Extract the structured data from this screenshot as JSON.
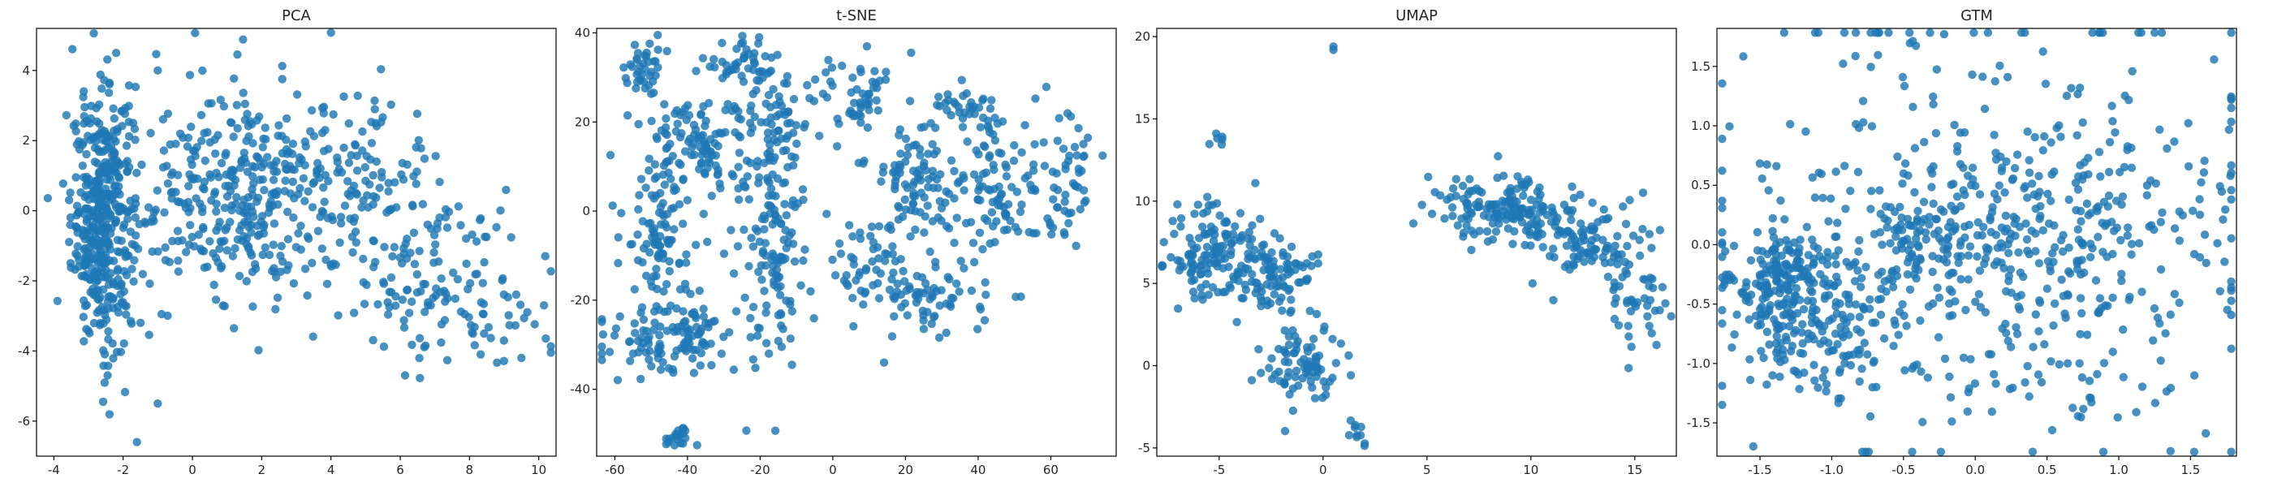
{
  "chart_data": [
    {
      "type": "scatter",
      "title": "PCA",
      "xlabel": "",
      "ylabel": "",
      "xlim": [
        -4.5,
        10.5
      ],
      "ylim": [
        -7.0,
        5.2
      ],
      "xticks": [
        -4,
        -2,
        0,
        2,
        4,
        6,
        8,
        10
      ],
      "yticks": [
        -6,
        -4,
        -2,
        0,
        2,
        4
      ],
      "color": "#1f77b4",
      "grid": false,
      "clusters": [
        {
          "center": [
            -2.6,
            -0.3
          ],
          "spread": [
            0.45,
            1.8
          ],
          "n": 420
        },
        {
          "center": [
            1.0,
            0.6
          ],
          "spread": [
            1.6,
            1.6
          ],
          "n": 300
        },
        {
          "center": [
            4.0,
            0.5
          ],
          "spread": [
            1.6,
            1.5
          ],
          "n": 170
        },
        {
          "center": [
            6.8,
            -1.8
          ],
          "spread": [
            1.5,
            1.3
          ],
          "n": 110
        },
        {
          "center": [
            8.5,
            -2.8
          ],
          "spread": [
            1.0,
            1.0
          ],
          "n": 40
        }
      ],
      "points": [
        [
          -1.6,
          -6.6
        ],
        [
          -1.0,
          -5.5
        ],
        [
          9.5,
          -4.2
        ],
        [
          -2.2,
          4.5
        ],
        [
          -1.0,
          4.0
        ]
      ]
    },
    {
      "type": "scatter",
      "title": "t-SNE",
      "xlabel": "",
      "ylabel": "",
      "xlim": [
        -65,
        78
      ],
      "ylim": [
        -55,
        41
      ],
      "xticks": [
        -60,
        -40,
        -20,
        0,
        20,
        40,
        60
      ],
      "yticks": [
        -40,
        -20,
        0,
        20,
        40
      ],
      "color": "#1f77b4",
      "grid": false,
      "clusters": [
        {
          "center": [
            -52,
            32
          ],
          "spread": [
            2.5,
            3.5
          ],
          "n": 40
        },
        {
          "center": [
            -25,
            34
          ],
          "spread": [
            5,
            2.5
          ],
          "n": 40
        },
        {
          "center": [
            -38,
            15
          ],
          "spread": [
            7,
            6
          ],
          "n": 110
        },
        {
          "center": [
            -48,
            -5
          ],
          "spread": [
            5,
            8
          ],
          "n": 90
        },
        {
          "center": [
            -45,
            -28
          ],
          "spread": [
            9,
            4
          ],
          "n": 120
        },
        {
          "center": [
            -18,
            -5
          ],
          "spread": [
            5,
            14
          ],
          "n": 150
        },
        {
          "center": [
            -15,
            20
          ],
          "spread": [
            6,
            6
          ],
          "n": 60
        },
        {
          "center": [
            8,
            25
          ],
          "spread": [
            5,
            5
          ],
          "n": 50
        },
        {
          "center": [
            22,
            8
          ],
          "spread": [
            6,
            6
          ],
          "n": 90
        },
        {
          "center": [
            10,
            -12
          ],
          "spread": [
            6,
            6
          ],
          "n": 60
        },
        {
          "center": [
            30,
            -20
          ],
          "spread": [
            8,
            4
          ],
          "n": 60
        },
        {
          "center": [
            45,
            5
          ],
          "spread": [
            7,
            9
          ],
          "n": 100
        },
        {
          "center": [
            65,
            5
          ],
          "spread": [
            4,
            8
          ],
          "n": 50
        },
        {
          "center": [
            38,
            23
          ],
          "spread": [
            6,
            2.5
          ],
          "n": 30
        },
        {
          "center": [
            -42,
            -51
          ],
          "spread": [
            2,
            1.2
          ],
          "n": 20
        }
      ],
      "points": []
    },
    {
      "type": "scatter",
      "title": "UMAP",
      "xlabel": "",
      "ylabel": "",
      "xlim": [
        -8,
        17
      ],
      "ylim": [
        -5.5,
        20.5
      ],
      "xticks": [
        -5,
        0,
        5,
        10,
        15
      ],
      "yticks": [
        -5,
        0,
        5,
        10,
        15,
        20
      ],
      "color": "#1f77b4",
      "grid": false,
      "clusters": [
        {
          "center": [
            -5.5,
            7.0
          ],
          "spread": [
            1.2,
            1.6
          ],
          "n": 110
        },
        {
          "center": [
            -2.8,
            5.5
          ],
          "spread": [
            1.3,
            1.3
          ],
          "n": 120
        },
        {
          "center": [
            -0.8,
            0.0
          ],
          "spread": [
            1.0,
            1.2
          ],
          "n": 80
        },
        {
          "center": [
            8.5,
            9.5
          ],
          "spread": [
            1.6,
            1.0
          ],
          "n": 150
        },
        {
          "center": [
            12.5,
            7.5
          ],
          "spread": [
            1.6,
            1.3
          ],
          "n": 110
        },
        {
          "center": [
            14.8,
            4.0
          ],
          "spread": [
            0.8,
            1.2
          ],
          "n": 40
        },
        {
          "center": [
            -5.0,
            14.0
          ],
          "spread": [
            0.2,
            0.3
          ],
          "n": 6
        },
        {
          "center": [
            1.6,
            -4.0
          ],
          "spread": [
            0.3,
            0.5
          ],
          "n": 10
        }
      ],
      "points": [
        [
          0.5,
          19.4
        ],
        [
          0.5,
          19.2
        ]
      ]
    },
    {
      "type": "scatter",
      "title": "GTM",
      "xlabel": "",
      "ylabel": "",
      "xlim": [
        -1.8,
        1.82
      ],
      "ylim": [
        -1.78,
        1.82
      ],
      "xticks": [
        -1.5,
        -1.0,
        -0.5,
        0.0,
        0.5,
        1.0,
        1.5
      ],
      "yticks": [
        -1.5,
        -1.0,
        -0.5,
        0.0,
        0.5,
        1.0,
        1.5
      ],
      "color": "#1f77b4",
      "grid": false,
      "clusters": [
        {
          "center": [
            -1.35,
            -0.3
          ],
          "spread": [
            0.2,
            0.2
          ],
          "n": 170
        },
        {
          "center": [
            -1.1,
            -0.75
          ],
          "spread": [
            0.25,
            0.25
          ],
          "n": 120
        },
        {
          "center": [
            -0.2,
            0.0
          ],
          "spread": [
            0.35,
            0.25
          ],
          "n": 120
        },
        {
          "center": [
            0.6,
            0.1
          ],
          "spread": [
            0.5,
            0.4
          ],
          "n": 100
        },
        {
          "center": [
            0.0,
            0.0
          ],
          "spread": [
            1.0,
            1.0
          ],
          "n": 450
        }
      ],
      "points": []
    }
  ]
}
